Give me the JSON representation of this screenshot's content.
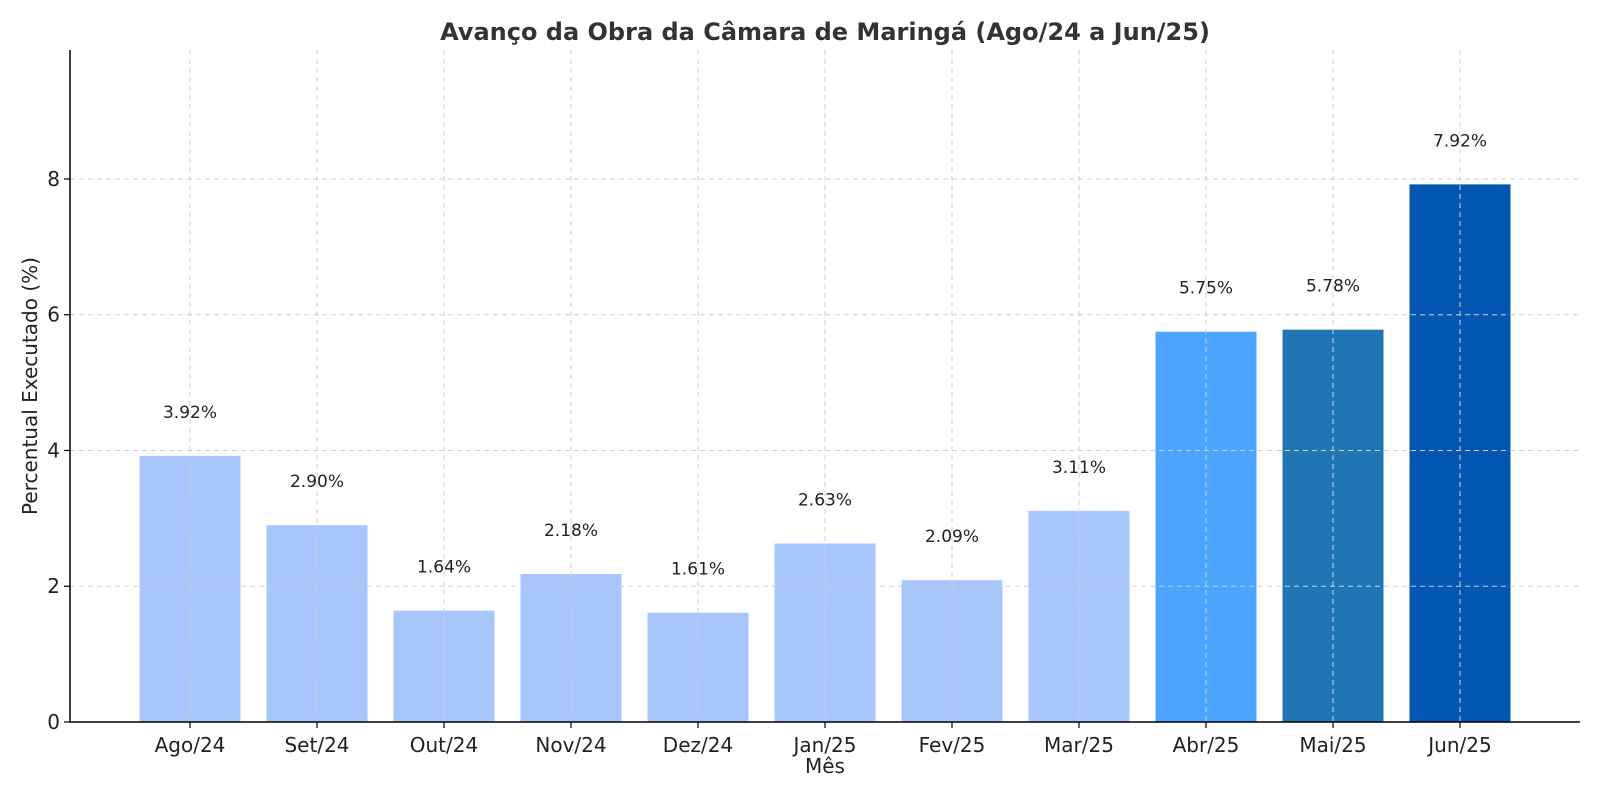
{
  "chart_data": {
    "type": "bar",
    "title": "Avanço da Obra da Câmara de Maringá (Ago/24 a Jun/25)",
    "xlabel": "Mês",
    "ylabel": "Percentual Executado (%)",
    "ylim": [
      0,
      9.9
    ],
    "yticks": [
      0,
      2,
      4,
      6,
      8
    ],
    "grid": true,
    "categories": [
      "Ago/24",
      "Set/24",
      "Out/24",
      "Nov/24",
      "Dez/24",
      "Jan/25",
      "Fev/25",
      "Mar/25",
      "Abr/25",
      "Mai/25",
      "Jun/25"
    ],
    "values": [
      3.92,
      2.9,
      1.64,
      2.18,
      1.61,
      2.63,
      2.09,
      3.11,
      5.75,
      5.78,
      7.92
    ],
    "value_labels": [
      "3.92%",
      "2.90%",
      "1.64%",
      "2.18%",
      "1.61%",
      "2.63%",
      "2.09%",
      "3.11%",
      "5.75%",
      "5.78%",
      "7.92%"
    ],
    "colors": [
      "#a7c7fc",
      "#a7c7fc",
      "#a7c7fc",
      "#a7c7fc",
      "#a7c7fc",
      "#a7c7fc",
      "#a7c7fc",
      "#a7c7fc",
      "#4ca5fe",
      "#2075b5",
      "#0357b3"
    ]
  }
}
